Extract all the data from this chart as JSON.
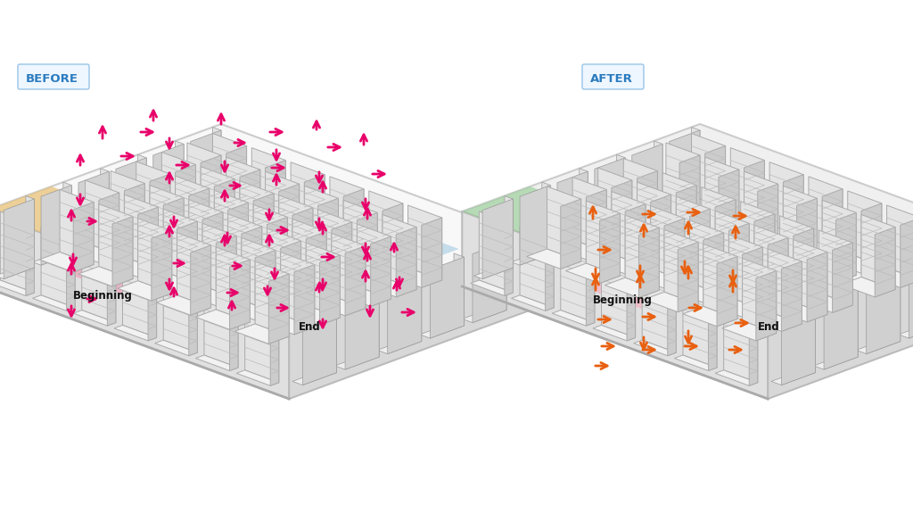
{
  "bg_color": "#ffffff",
  "before_label": "BEFORE",
  "after_label": "AFTER",
  "label_color": "#2b7bbf",
  "label_box_color": "#eef6ff",
  "label_box_edge": "#99c4e8",
  "before_arrow_color": "#e8006a",
  "after_arrow_color": "#e86010",
  "before_zone_yellow": "#d8d870",
  "before_zone_green": "#6aaa6a",
  "before_zone_blue": "#88bbdd",
  "before_zone_orange": "#e8c070",
  "before_zone_lgreen": "#90d090",
  "before_zone_pink": "#f0a0b8",
  "after_zone_green": "#90cc90",
  "after_zone_orange": "#e8c888",
  "after_zone_pink": "#f4b0c0",
  "floor_color_before": "#f8f8f8",
  "floor_color_after": "#f0f0f0",
  "wall_top_color": "#e0e0e0",
  "wall_right_color": "#d8d8d8",
  "shelf_front": "#e4e4e4",
  "shelf_top": "#f2f2f2",
  "shelf_side": "#cccccc",
  "shelf_line": "#bbbbbb",
  "figsize": [
    10.24,
    5.94
  ],
  "dpi": 100,
  "before_arrows": [
    [
      115,
      158,
      0,
      -22
    ],
    [
      133,
      175,
      22,
      0
    ],
    [
      90,
      188,
      0,
      -20
    ],
    [
      90,
      215,
      0,
      20
    ],
    [
      95,
      248,
      18,
      0
    ],
    [
      80,
      250,
      0,
      -20
    ],
    [
      82,
      282,
      0,
      20
    ],
    [
      80,
      310,
      0,
      -20
    ],
    [
      95,
      335,
      18,
      0
    ],
    [
      80,
      340,
      0,
      20
    ],
    [
      155,
      148,
      22,
      0
    ],
    [
      172,
      138,
      0,
      -20
    ],
    [
      190,
      152,
      0,
      20
    ],
    [
      195,
      185,
      22,
      0
    ],
    [
      190,
      208,
      0,
      -20
    ],
    [
      195,
      240,
      0,
      20
    ],
    [
      190,
      268,
      0,
      -20
    ],
    [
      192,
      295,
      20,
      0
    ],
    [
      190,
      310,
      0,
      20
    ],
    [
      195,
      335,
      0,
      -18
    ],
    [
      248,
      142,
      0,
      -20
    ],
    [
      260,
      160,
      20,
      0
    ],
    [
      252,
      178,
      0,
      20
    ],
    [
      255,
      208,
      20,
      0
    ],
    [
      252,
      228,
      0,
      -20
    ],
    [
      255,
      258,
      0,
      20
    ],
    [
      252,
      278,
      0,
      -20
    ],
    [
      258,
      298,
      18,
      0
    ],
    [
      300,
      148,
      22,
      0
    ],
    [
      310,
      165,
      0,
      20
    ],
    [
      302,
      188,
      22,
      0
    ],
    [
      310,
      210,
      0,
      -20
    ],
    [
      302,
      232,
      0,
      20
    ],
    [
      308,
      258,
      20,
      0
    ],
    [
      302,
      278,
      0,
      -20
    ],
    [
      308,
      298,
      0,
      20
    ],
    [
      355,
      148,
      0,
      -18
    ],
    [
      365,
      165,
      22,
      0
    ],
    [
      358,
      190,
      0,
      20
    ],
    [
      362,
      218,
      0,
      -20
    ],
    [
      358,
      242,
      0,
      20
    ],
    [
      362,
      265,
      0,
      -20
    ],
    [
      358,
      288,
      22,
      0
    ],
    [
      362,
      310,
      0,
      20
    ],
    [
      408,
      165,
      0,
      -20
    ],
    [
      415,
      195,
      22,
      0
    ],
    [
      410,
      220,
      0,
      20
    ],
    [
      412,
      248,
      0,
      -20
    ],
    [
      410,
      270,
      0,
      20
    ],
    [
      412,
      295,
      0,
      -18
    ],
    [
      252,
      328,
      20,
      0
    ],
    [
      260,
      350,
      0,
      -18
    ],
    [
      300,
      318,
      0,
      18
    ],
    [
      308,
      345,
      20,
      0
    ],
    [
      358,
      330,
      0,
      -18
    ],
    [
      362,
      355,
      0,
      18
    ],
    [
      410,
      318,
      0,
      -20
    ],
    [
      415,
      340,
      0,
      20
    ],
    [
      442,
      285,
      0,
      -18
    ],
    [
      448,
      308,
      0,
      18
    ],
    [
      445,
      328,
      0,
      -18
    ],
    [
      448,
      350,
      22,
      0
    ]
  ],
  "after_arrows": [
    [
      665,
      248,
      0,
      -22
    ],
    [
      668,
      280,
      22,
      0
    ],
    [
      668,
      298,
      0,
      22
    ],
    [
      668,
      328,
      0,
      -22
    ],
    [
      668,
      358,
      22,
      0
    ],
    [
      718,
      240,
      22,
      0
    ],
    [
      722,
      268,
      0,
      -22
    ],
    [
      718,
      295,
      0,
      22
    ],
    [
      718,
      325,
      0,
      -22
    ],
    [
      718,
      355,
      22,
      0
    ],
    [
      722,
      375,
      0,
      22
    ],
    [
      768,
      238,
      22,
      0
    ],
    [
      772,
      265,
      0,
      -22
    ],
    [
      768,
      290,
      0,
      22
    ],
    [
      772,
      315,
      0,
      -22
    ],
    [
      770,
      345,
      22,
      0
    ],
    [
      772,
      368,
      0,
      22
    ],
    [
      820,
      242,
      22,
      0
    ],
    [
      825,
      270,
      0,
      -22
    ],
    [
      822,
      300,
      0,
      22
    ],
    [
      822,
      330,
      0,
      -22
    ],
    [
      822,
      362,
      22,
      0
    ],
    [
      672,
      388,
      22,
      0
    ],
    [
      718,
      392,
      22,
      0
    ],
    [
      765,
      388,
      22,
      0
    ],
    [
      815,
      392,
      22,
      0
    ],
    [
      665,
      410,
      22,
      0
    ]
  ]
}
